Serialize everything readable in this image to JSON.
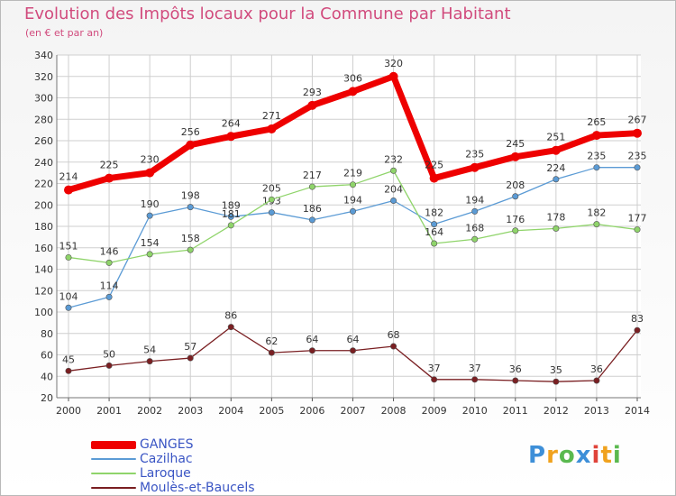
{
  "title": "Evolution des Impôts locaux pour la Commune par Habitant",
  "subtitle": "(en € et par an)",
  "brand": {
    "text": "Proxiti",
    "letters": [
      {
        "ch": "P",
        "color": "#3d8fd8"
      },
      {
        "ch": "r",
        "color": "#f0a21e"
      },
      {
        "ch": "o",
        "color": "#5ab94f"
      },
      {
        "ch": "x",
        "color": "#3d8fd8"
      },
      {
        "ch": "i",
        "color": "#e0433a"
      },
      {
        "ch": "t",
        "color": "#f0a21e"
      },
      {
        "ch": "i",
        "color": "#5ab94f"
      }
    ]
  },
  "chart_data": {
    "type": "line",
    "x": [
      "2000",
      "2001",
      "2002",
      "2003",
      "2004",
      "2005",
      "2006",
      "2007",
      "2008",
      "2009",
      "2010",
      "2011",
      "2012",
      "2013",
      "2014"
    ],
    "ylim": [
      20,
      340
    ],
    "yticks": [
      20,
      40,
      60,
      80,
      100,
      120,
      140,
      160,
      180,
      200,
      220,
      240,
      260,
      280,
      300,
      320,
      340
    ],
    "grid": true,
    "legend_position": "bottom-left",
    "series": [
      {
        "name": "GANGES",
        "color": "#ee0000",
        "width": 7,
        "marker": 5,
        "values": [
          214,
          225,
          230,
          256,
          264,
          271,
          293,
          306,
          320,
          225,
          235,
          245,
          251,
          265,
          267
        ],
        "labels": [
          "214",
          "225",
          "230",
          "256",
          "264",
          "271",
          "293",
          "306",
          "320",
          "225",
          "235",
          "245",
          "251",
          "265",
          "267"
        ]
      },
      {
        "name": "Cazilhac",
        "color": "#5b9bd5",
        "width": 1.3,
        "marker": 3.2,
        "values": [
          104,
          114,
          190,
          198,
          189,
          193,
          186,
          194,
          204,
          182,
          194,
          208,
          224,
          235,
          235
        ],
        "labels": [
          "104",
          "114",
          "190",
          "198",
          "189",
          "193",
          "186",
          "194",
          "204",
          "182",
          "194",
          "208",
          "224",
          "235",
          "235"
        ]
      },
      {
        "name": "Laroque",
        "color": "#8fd46a",
        "width": 1.3,
        "marker": 3.2,
        "values": [
          151,
          146,
          154,
          158,
          181,
          205,
          217,
          219,
          232,
          164,
          168,
          176,
          178,
          182,
          177
        ],
        "labels": [
          "151",
          "146",
          "154",
          "158",
          "181",
          "205",
          "217",
          "219",
          "232",
          "164",
          "168",
          "176",
          "178",
          "182",
          "177"
        ]
      },
      {
        "name": "Moulès-et-Baucels",
        "color": "#7a1f22",
        "width": 1.3,
        "marker": 3.2,
        "values": [
          45,
          50,
          54,
          57,
          86,
          62,
          64,
          64,
          68,
          37,
          37,
          36,
          35,
          36,
          83
        ],
        "labels": [
          "45",
          "50",
          "54",
          "57",
          "86",
          "62",
          "64",
          "64",
          "68",
          "37",
          "37",
          "36",
          "35",
          "36",
          "83"
        ]
      }
    ]
  }
}
